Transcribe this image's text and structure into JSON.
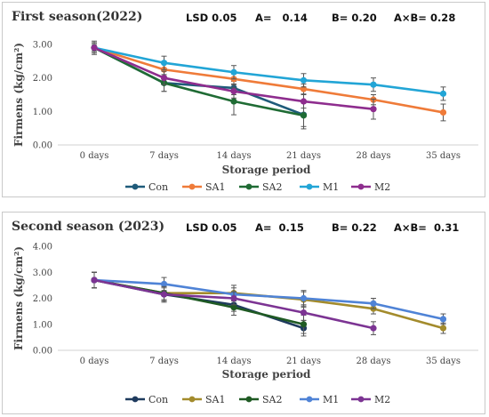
{
  "chart_data": [
    {
      "type": "line",
      "title": "First season(2022)",
      "lsd": {
        "label": "LSD 0.05",
        "a": "A=   0.14",
        "b": "B= 0.20",
        "ab": "A×B= 0.28"
      },
      "xlabel": "Storage period",
      "ylabel": "Firmens (kg/cm²)",
      "categories": [
        "0 days",
        "7 days",
        "14 days",
        "21 days",
        "28 days",
        "35 days"
      ],
      "ylim": [
        0,
        3
      ],
      "yticks": [
        "0.00",
        "1.00",
        "2.00",
        "3.00"
      ],
      "grid": false,
      "legend_position": "bottom",
      "series": [
        {
          "name": "Con",
          "color": "#1f5b7a",
          "values": [
            2.9,
            1.85,
            1.7,
            0.9,
            null,
            null
          ],
          "errors": [
            0.2,
            0.25,
            0.2,
            0.35,
            null,
            null
          ]
        },
        {
          "name": "SA1",
          "color": "#ef7b39",
          "values": [
            2.9,
            2.25,
            1.97,
            1.67,
            1.35,
            0.97
          ],
          "errors": [
            0.15,
            0.2,
            0.15,
            0.15,
            0.15,
            0.25
          ]
        },
        {
          "name": "SA2",
          "color": "#1f6b34",
          "values": [
            2.9,
            1.85,
            1.3,
            0.88,
            null,
            null
          ],
          "errors": [
            0.15,
            0.25,
            0.4,
            0.4,
            null,
            null
          ]
        },
        {
          "name": "M1",
          "color": "#22a5d6",
          "values": [
            2.9,
            2.45,
            2.17,
            1.93,
            1.8,
            1.53
          ],
          "errors": [
            0.1,
            0.2,
            0.2,
            0.2,
            0.2,
            0.2
          ]
        },
        {
          "name": "M2",
          "color": "#8e2d8e",
          "values": [
            2.9,
            2.0,
            1.6,
            1.3,
            1.07,
            null
          ],
          "errors": [
            0.15,
            0.2,
            0.2,
            0.2,
            0.3,
            null
          ]
        }
      ]
    },
    {
      "type": "line",
      "title": "Second season (2023)",
      "lsd": {
        "label": "LSD 0.05",
        "a": "A=  0.15",
        "b": "B= 0.22",
        "ab": "A×B=  0.31"
      },
      "xlabel": "Storage period",
      "ylabel": "Firmens (kg/cm²)",
      "categories": [
        "0 days",
        "7 days",
        "14 days",
        "21 days",
        "28 days",
        "35 days"
      ],
      "ylim": [
        0,
        4
      ],
      "yticks": [
        "0.00",
        "1.00",
        "2.00",
        "3.00",
        "4.00"
      ],
      "grid": false,
      "legend_position": "bottom",
      "series": [
        {
          "name": "Con",
          "color": "#1f3b5e",
          "values": [
            2.7,
            2.15,
            1.75,
            0.85,
            null,
            null
          ],
          "errors": [
            0.3,
            0.25,
            0.25,
            0.3,
            null,
            null
          ]
        },
        {
          "name": "SA1",
          "color": "#a38b2c",
          "values": [
            2.7,
            2.2,
            2.2,
            1.95,
            1.6,
            0.85
          ],
          "errors": [
            0.3,
            0.3,
            0.3,
            0.3,
            0.2,
            0.2
          ]
        },
        {
          "name": "SA2",
          "color": "#1f5a23",
          "values": [
            2.7,
            2.2,
            1.65,
            1.0,
            null,
            null
          ],
          "errors": [
            0.3,
            0.25,
            0.3,
            0.35,
            null,
            null
          ]
        },
        {
          "name": "M1",
          "color": "#4f83d6",
          "values": [
            2.7,
            2.55,
            2.15,
            2.0,
            1.8,
            1.2
          ],
          "errors": [
            0.3,
            0.25,
            0.25,
            0.3,
            0.2,
            0.2
          ]
        },
        {
          "name": "M2",
          "color": "#7c3493",
          "values": [
            2.7,
            2.15,
            2.0,
            1.45,
            0.85,
            null
          ],
          "errors": [
            0.3,
            0.3,
            0.25,
            0.3,
            0.25,
            null
          ]
        }
      ]
    }
  ]
}
